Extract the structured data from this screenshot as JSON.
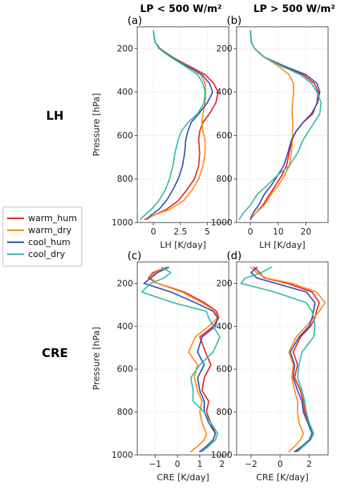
{
  "column_titles": [
    "LP < 500 W/m²",
    "LP > 500 W/m²"
  ],
  "row_titles": [
    "LH",
    "CRE"
  ],
  "legend": [
    {
      "name": "warm_hum",
      "color": "#ee2222"
    },
    {
      "name": "warm_dry",
      "color": "#ff8c1a"
    },
    {
      "name": "cool_hum",
      "color": "#3a4fb0"
    },
    {
      "name": "cool_dry",
      "color": "#33bbaa"
    }
  ],
  "chart_data": [
    {
      "type": "line",
      "panel": "(a)",
      "xlabel": "LH [K/day]",
      "ylabel": "Pressure [hPa]",
      "xlim": [
        -1.5,
        7
      ],
      "ylim": [
        1000,
        100
      ],
      "xticks": [
        0,
        2.5,
        5
      ],
      "xtick_labels": [
        "0",
        "2.5",
        "5"
      ],
      "yticks": [
        200,
        400,
        600,
        800,
        1000
      ],
      "grid": true,
      "series": [
        {
          "name": "warm_hum",
          "x": [
            0,
            0.15,
            0.6,
            1.8,
            3.3,
            4.8,
            5.6,
            6.0,
            5.8,
            5.2,
            4.6,
            4.3,
            4.2,
            4.3,
            4.2,
            3.8,
            3.1,
            2.3,
            1.2,
            0.1,
            -0.8
          ],
          "y": [
            120,
            170,
            200,
            240,
            280,
            320,
            360,
            400,
            450,
            500,
            540,
            580,
            620,
            680,
            740,
            800,
            850,
            900,
            940,
            965,
            985
          ]
        },
        {
          "name": "warm_dry",
          "x": [
            0,
            0.15,
            0.6,
            1.8,
            3.2,
            4.4,
            4.8,
            4.85,
            4.8,
            4.6,
            4.5,
            4.6,
            4.8,
            4.8,
            4.6,
            4.2,
            3.6,
            2.8,
            1.5,
            0.1,
            -0.7
          ],
          "y": [
            120,
            170,
            200,
            240,
            280,
            320,
            360,
            400,
            450,
            500,
            540,
            580,
            620,
            680,
            740,
            800,
            850,
            900,
            940,
            965,
            985
          ]
        },
        {
          "name": "cool_hum",
          "x": [
            0,
            0.15,
            0.55,
            1.7,
            3.1,
            4.5,
            5.2,
            5.5,
            5.0,
            4.2,
            3.5,
            3.2,
            3.0,
            2.9,
            2.7,
            2.3,
            1.8,
            1.2,
            0.5,
            -0.2,
            -0.6
          ],
          "y": [
            120,
            170,
            200,
            240,
            280,
            320,
            360,
            400,
            450,
            500,
            540,
            580,
            620,
            680,
            740,
            800,
            850,
            900,
            940,
            965,
            985
          ]
        },
        {
          "name": "cool_dry",
          "x": [
            0,
            0.15,
            0.5,
            1.6,
            2.9,
            4.1,
            4.6,
            4.8,
            4.7,
            4.1,
            3.2,
            2.6,
            2.3,
            2.0,
            1.8,
            1.5,
            1.1,
            0.5,
            -0.2,
            -0.8,
            -1.2
          ],
          "y": [
            120,
            170,
            200,
            240,
            280,
            320,
            360,
            400,
            450,
            500,
            540,
            580,
            620,
            680,
            740,
            800,
            850,
            900,
            940,
            965,
            985
          ]
        }
      ]
    },
    {
      "type": "line",
      "panel": "(b)",
      "xlabel": "LH [K/day]",
      "ylabel": "",
      "xlim": [
        -5,
        28
      ],
      "ylim": [
        1000,
        100
      ],
      "xticks": [
        0,
        10,
        20
      ],
      "xtick_labels": [
        "0",
        "10",
        "20"
      ],
      "yticks": [
        200,
        400,
        600,
        800,
        1000
      ],
      "grid": true,
      "series": [
        {
          "name": "warm_hum",
          "x": [
            0,
            0.3,
            1.5,
            5,
            12,
            19,
            23,
            24.5,
            24,
            22.5,
            19,
            16.5,
            15,
            14,
            13,
            11.5,
            9,
            7,
            4.5,
            2,
            0
          ],
          "y": [
            120,
            170,
            200,
            240,
            280,
            320,
            360,
            400,
            450,
            500,
            540,
            580,
            620,
            680,
            740,
            780,
            830,
            870,
            920,
            955,
            985
          ]
        },
        {
          "name": "warm_dry",
          "x": [
            0,
            0.3,
            1.5,
            5,
            10,
            14,
            15.5,
            15.6,
            15.2,
            15.0,
            15.3,
            15.2,
            15.2,
            14.8,
            14.0,
            12.5,
            10,
            7.5,
            5,
            2,
            0
          ],
          "y": [
            120,
            170,
            200,
            240,
            280,
            320,
            360,
            400,
            450,
            500,
            540,
            580,
            620,
            680,
            740,
            780,
            830,
            870,
            920,
            955,
            985
          ]
        },
        {
          "name": "cool_hum",
          "x": [
            0,
            0.3,
            1.5,
            5,
            12,
            20,
            24,
            25,
            24.2,
            22,
            19,
            16.5,
            14.8,
            13.5,
            12,
            10,
            7.5,
            5,
            3,
            1,
            0
          ],
          "y": [
            120,
            170,
            200,
            240,
            280,
            320,
            360,
            400,
            450,
            500,
            540,
            580,
            620,
            680,
            740,
            780,
            830,
            870,
            920,
            955,
            985
          ]
        },
        {
          "name": "cool_dry",
          "x": [
            0,
            0.3,
            1.5,
            5,
            11,
            18,
            22,
            24,
            25.5,
            25,
            23,
            21,
            19,
            17,
            14,
            10,
            6,
            2.5,
            0,
            -2.5,
            -4
          ],
          "y": [
            120,
            170,
            200,
            240,
            280,
            320,
            360,
            400,
            450,
            500,
            540,
            580,
            620,
            680,
            740,
            780,
            830,
            870,
            920,
            955,
            985
          ]
        }
      ]
    },
    {
      "type": "line",
      "panel": "(c)",
      "xlabel": "CRE [K/day]",
      "ylabel": "Pressure [hPa]",
      "xlim": [
        -1.8,
        2.3
      ],
      "ylim": [
        1000,
        100
      ],
      "xticks": [
        -1,
        0,
        1,
        2
      ],
      "xtick_labels": [
        "−1",
        "0",
        "1",
        "2"
      ],
      "yticks": [
        200,
        400,
        600,
        800,
        1000
      ],
      "grid": true,
      "series": [
        {
          "name": "warm_hum",
          "x": [
            -0.5,
            -1.1,
            -1.3,
            -0.9,
            0.3,
            1.2,
            1.75,
            1.85,
            1.6,
            1.0,
            1.25,
            1.5,
            1.2,
            1.1,
            1.4,
            1.3,
            1.5,
            1.7,
            1.6,
            1.3,
            1.0
          ],
          "y": [
            125,
            150,
            175,
            200,
            240,
            290,
            330,
            360,
            400,
            450,
            520,
            580,
            640,
            700,
            750,
            800,
            850,
            900,
            930,
            960,
            985
          ]
        },
        {
          "name": "warm_dry",
          "x": [
            -0.5,
            -1.0,
            -1.2,
            -0.9,
            0.2,
            1.1,
            1.7,
            1.8,
            1.4,
            0.8,
            0.5,
            0.9,
            0.75,
            0.9,
            1.1,
            1.0,
            1.1,
            1.3,
            1.2,
            0.9,
            0.6
          ],
          "y": [
            125,
            150,
            175,
            200,
            240,
            290,
            330,
            360,
            400,
            450,
            520,
            580,
            640,
            700,
            750,
            800,
            850,
            900,
            930,
            960,
            985
          ]
        },
        {
          "name": "cool_hum",
          "x": [
            -0.4,
            -0.9,
            -1.2,
            -1.5,
            -0.3,
            0.8,
            1.6,
            1.8,
            1.7,
            1.1,
            0.9,
            1.2,
            0.9,
            1.0,
            1.2,
            1.2,
            1.4,
            1.7,
            1.6,
            1.3,
            1.0
          ],
          "y": [
            125,
            150,
            175,
            200,
            240,
            290,
            330,
            360,
            400,
            450,
            520,
            580,
            640,
            700,
            750,
            800,
            850,
            900,
            930,
            960,
            985
          ]
        },
        {
          "name": "cool_dry",
          "x": [
            -0.7,
            -0.3,
            -0.6,
            -1.2,
            -1.6,
            -0.2,
            1.3,
            1.4,
            1.6,
            1.9,
            1.6,
            1.0,
            0.6,
            0.7,
            0.7,
            1.2,
            1.5,
            1.8,
            1.7,
            1.4,
            1.1
          ],
          "y": [
            125,
            150,
            175,
            200,
            240,
            290,
            330,
            360,
            400,
            450,
            520,
            580,
            640,
            700,
            750,
            800,
            850,
            900,
            930,
            960,
            985
          ]
        }
      ]
    },
    {
      "type": "line",
      "panel": "(d)",
      "xlabel": "CRE [K/day]",
      "ylabel": "",
      "xlim": [
        -3,
        3.3
      ],
      "ylim": [
        1000,
        100
      ],
      "xticks": [
        -2,
        0,
        2
      ],
      "xtick_labels": [
        "−2",
        "0",
        "2"
      ],
      "yticks": [
        200,
        400,
        600,
        800,
        1000
      ],
      "grid": true,
      "series": [
        {
          "name": "warm_hum",
          "x": [
            -1.8,
            -1.4,
            -1.1,
            0.5,
            2.2,
            2.7,
            2.5,
            2.4,
            2.1,
            1.4,
            0.9,
            1.2,
            1.0,
            1.4,
            1.6,
            1.7,
            2.0,
            2.3,
            2.1,
            1.6,
            1.1
          ],
          "y": [
            125,
            150,
            175,
            200,
            240,
            290,
            330,
            360,
            400,
            450,
            520,
            580,
            640,
            700,
            750,
            800,
            850,
            900,
            930,
            960,
            985
          ]
        },
        {
          "name": "warm_dry",
          "x": [
            -2.0,
            -1.6,
            -1.0,
            0.8,
            2.5,
            3.1,
            2.7,
            2.3,
            1.8,
            1.1,
            0.6,
            0.9,
            0.8,
            1.0,
            1.2,
            1.2,
            1.3,
            1.6,
            1.4,
            1.0,
            0.6
          ],
          "y": [
            125,
            150,
            175,
            200,
            240,
            290,
            330,
            360,
            400,
            450,
            520,
            580,
            640,
            700,
            750,
            800,
            850,
            900,
            930,
            960,
            985
          ]
        },
        {
          "name": "cool_hum",
          "x": [
            -1.6,
            -2.0,
            -1.6,
            -0.3,
            1.8,
            2.4,
            2.3,
            2.2,
            2.0,
            1.3,
            0.7,
            1.0,
            0.9,
            1.2,
            1.5,
            1.6,
            1.9,
            2.2,
            2.0,
            1.5,
            1.0
          ],
          "y": [
            125,
            150,
            175,
            200,
            240,
            290,
            330,
            360,
            400,
            450,
            520,
            580,
            640,
            700,
            750,
            800,
            850,
            900,
            930,
            960,
            985
          ]
        },
        {
          "name": "cool_dry",
          "x": [
            -0.6,
            -1.3,
            -2.4,
            -2.7,
            -0.4,
            1.8,
            2.2,
            2.3,
            2.4,
            2.3,
            1.5,
            1.3,
            1.2,
            1.5,
            1.7,
            1.8,
            2.0,
            2.3,
            2.1,
            1.6,
            1.2
          ],
          "y": [
            125,
            150,
            175,
            200,
            240,
            290,
            330,
            360,
            400,
            450,
            520,
            580,
            640,
            700,
            750,
            800,
            850,
            900,
            930,
            960,
            985
          ]
        }
      ]
    }
  ]
}
